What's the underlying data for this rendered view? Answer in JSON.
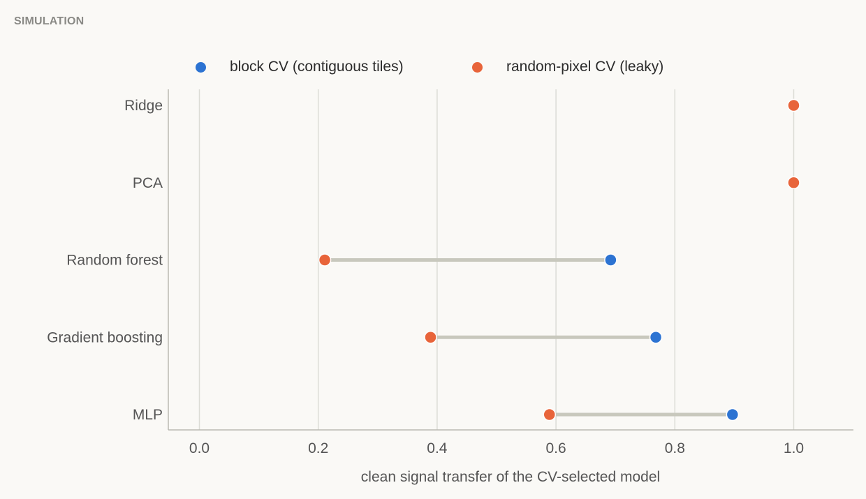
{
  "header": {
    "section_label": "SIMULATION"
  },
  "colors": {
    "block": "#2c73d2",
    "random": "#e8643a",
    "connector": "#c8c8bd",
    "grid": "#dcdcd6",
    "axis": "#b9b9b2",
    "text": "#555555"
  },
  "chart_data": {
    "type": "scatter",
    "subtype": "dumbbell",
    "title": "",
    "xlabel": "clean signal transfer of the CV-selected model",
    "ylabel": "",
    "xlim": [
      -0.05,
      1.1
    ],
    "xticks": [
      0.0,
      0.2,
      0.4,
      0.6,
      0.8,
      1.0
    ],
    "xtick_labels": [
      "0.0",
      "0.2",
      "0.4",
      "0.6",
      "0.8",
      "1.0"
    ],
    "grid": "vertical",
    "legend_position": "top",
    "categories": [
      "Ridge",
      "PCA",
      "Random forest",
      "Gradient boosting",
      "MLP"
    ],
    "series": [
      {
        "name": "block CV (contiguous tiles)",
        "color": "#2c73d2",
        "values": [
          1.0,
          1.0,
          0.692,
          0.768,
          0.897
        ]
      },
      {
        "name": "random-pixel CV (leaky)",
        "color": "#e8643a",
        "values": [
          1.0,
          1.0,
          0.211,
          0.389,
          0.589
        ]
      }
    ]
  }
}
